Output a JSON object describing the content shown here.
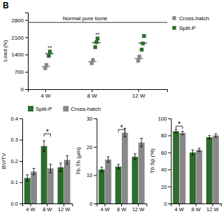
{
  "chart_data": [
    {
      "type": "scatter",
      "title": "B",
      "ylabel": "Load (N)",
      "xlim": [
        2.5,
        14.5
      ],
      "ylim": [
        0,
        3100
      ],
      "xticks": [
        {
          "value": 4,
          "label": "4 W"
        },
        {
          "value": 8,
          "label": "8 W"
        },
        {
          "value": 12,
          "label": "12 W"
        }
      ],
      "yticks": [
        0,
        700,
        1400,
        2100,
        2800
      ],
      "legend": "right",
      "marker": "square",
      "hline": 2700,
      "series": [
        {
          "name": "Cross-hatch",
          "color": "#888888",
          "x": [
            4,
            4.1,
            8,
            8.1,
            12,
            12.1
          ],
          "values": [
            850,
            980,
            1050,
            1180,
            1150,
            1320
          ],
          "mean_x": [
            4.05,
            8.05,
            12.05
          ],
          "means": [
            915,
            1115,
            1235
          ]
        },
        {
          "name": "Split-P",
          "color": "#2e6b2e",
          "x": [
            4.3,
            4.4,
            8.3,
            8.4,
            8.5,
            12.3,
            12.4,
            12.5
          ],
          "values": [
            1350,
            1520,
            1700,
            1900,
            2050,
            1600,
            1850,
            2150
          ],
          "mean_x": [
            4.35,
            8.4,
            12.4
          ],
          "means": [
            1435,
            1883,
            1867
          ]
        }
      ],
      "annotations": [
        {
          "text": "Normal pure bone",
          "x": 5.5,
          "y": 2780
        },
        {
          "text": "**",
          "x": 4.2,
          "y": 1620
        },
        {
          "text": "**",
          "x": 8.3,
          "y": 2150
        }
      ]
    },
    {
      "type": "bar",
      "ylabel": "BV/TV",
      "categories": [
        "4 W",
        "8 W",
        "12 W"
      ],
      "ylim": [
        0.0,
        0.4
      ],
      "yticks": [
        {
          "value": 0.0,
          "label": "0.0"
        },
        0.1,
        0.2,
        0.3,
        0.4
      ],
      "legend": "top",
      "series": [
        {
          "name": "Split-P",
          "color": "#2e6b2e",
          "values": [
            0.12,
            0.27,
            0.17
          ],
          "errors": [
            0.015,
            0.025,
            0.02
          ]
        },
        {
          "name": "Cross-hatch",
          "color": "#888888",
          "values": [
            0.15,
            0.165,
            0.205
          ],
          "errors": [
            0.015,
            0.02,
            0.02
          ]
        }
      ],
      "annotations": [
        {
          "text": "*",
          "x": "8 W",
          "y": 0.328
        }
      ]
    },
    {
      "type": "bar",
      "ylabel": "Tb.Th (μm)",
      "categories": [
        "4 W",
        "8 W",
        "12 W"
      ],
      "ylim": [
        0,
        30
      ],
      "yticks": [
        0,
        10,
        20,
        30
      ],
      "series": [
        {
          "name": "Split-P",
          "color": "#2e6b2e",
          "values": [
            12.0,
            13.0,
            16.5
          ],
          "errors": [
            0.8,
            0.8,
            1.0
          ]
        },
        {
          "name": "Cross-hatch",
          "color": "#888888",
          "values": [
            15.5,
            25.0,
            21.5
          ],
          "errors": [
            1.0,
            1.5,
            1.5
          ]
        }
      ],
      "annotations": [
        {
          "text": "*",
          "x": "8 W",
          "y": 26.1
        }
      ]
    },
    {
      "type": "bar",
      "ylabel": "Tb.Sp (%)",
      "categories": [
        "4 W",
        "8 W",
        "12 W"
      ],
      "ylim": [
        0,
        100
      ],
      "yticks": [
        0,
        20,
        40,
        60,
        80,
        100
      ],
      "series": [
        {
          "name": "Split-P",
          "color": "#2e6b2e",
          "values": [
            85,
            60,
            78
          ],
          "errors": [
            2,
            3,
            2
          ]
        },
        {
          "name": "Cross-hatch",
          "color": "#888888",
          "values": [
            83,
            63,
            80
          ],
          "errors": [
            2,
            2,
            2
          ]
        }
      ],
      "annotations": [
        {
          "text": "*",
          "x": "4 W",
          "y": 91
        }
      ]
    }
  ]
}
